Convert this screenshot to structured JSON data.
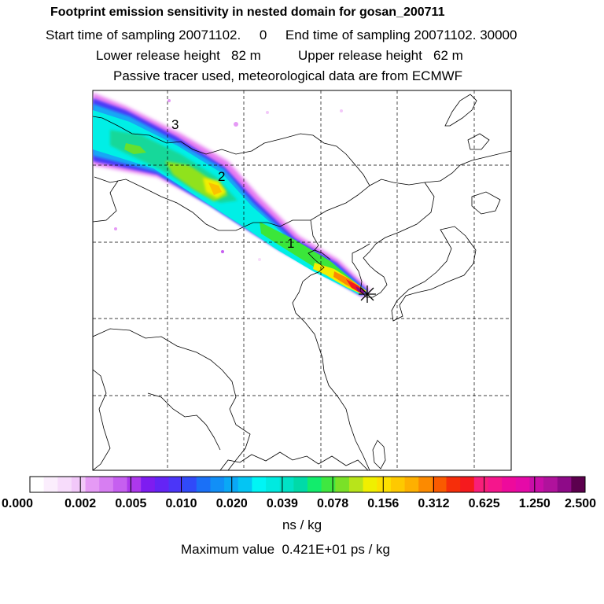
{
  "header": {
    "title": "Footprint emission sensitivity in nested domain for gosan_200711",
    "sampling": "Start time of sampling 20071102.     0     End time of sampling 20071102. 30000",
    "release": "Lower release height   82 m          Upper release height   62 m",
    "tracer": "Passive tracer used, meteorological data are from ECMWF"
  },
  "map": {
    "trajectory_labels": [
      "1",
      "2",
      "3"
    ],
    "receptor_marker": "asterisk"
  },
  "colorbar": {
    "colors": [
      "#ffffff",
      "#fbeefd",
      "#f7dcfb",
      "#f2c8f9",
      "#e59af5",
      "#d77ef2",
      "#c65ff0",
      "#ad38ec",
      "#7e1cf0",
      "#6424f5",
      "#4b36f8",
      "#304af9",
      "#1a70f7",
      "#118ff7",
      "#0aa8f6",
      "#04c5f3",
      "#00f5f5",
      "#00eae0",
      "#00e2c6",
      "#00daa8",
      "#12ec6c",
      "#3fe740",
      "#7ae127",
      "#b8e41a",
      "#f0ef00",
      "#fde000",
      "#fec900",
      "#feb000",
      "#fc8a00",
      "#fa5a00",
      "#f62e0a",
      "#f51a1e",
      "#f81f7a",
      "#f5168c",
      "#ee0a9c",
      "#e50aa8",
      "#c90ea8",
      "#b0129c",
      "#8e0a88",
      "#5c004e"
    ],
    "ticks": [
      "0.000",
      "0.002",
      "0.005",
      "0.010",
      "0.020",
      "0.039",
      "0.078",
      "0.156",
      "0.312",
      "0.625",
      "1.250",
      "2.500"
    ],
    "units": "ns / kg"
  },
  "footer": {
    "max_value": "Maximum value  0.421E+01 ps / kg"
  }
}
